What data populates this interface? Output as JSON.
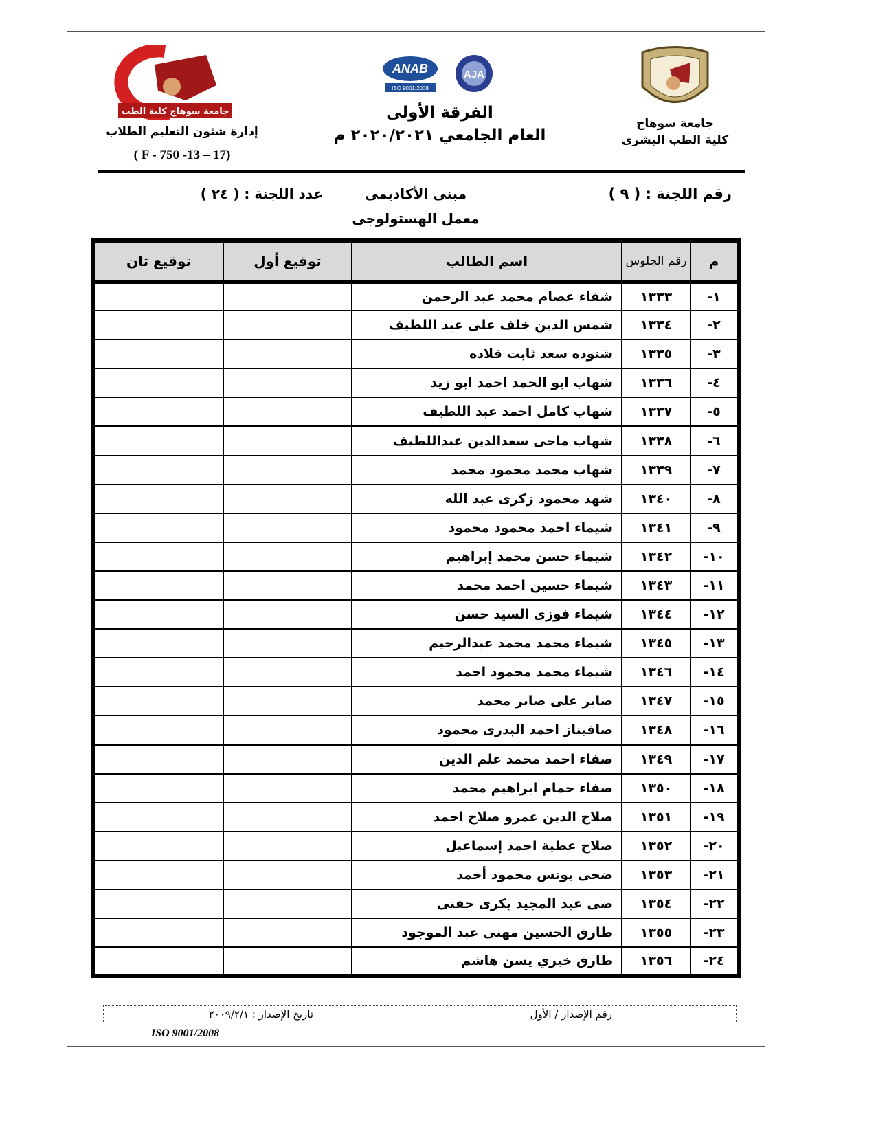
{
  "header": {
    "university": "جامعة سوهاج",
    "faculty": "كلية الطب البشرى",
    "year_level": "الفرقة الأولى",
    "academic_year": "العام الجامعي ٢٠٢٠/٢٠٢١ م",
    "department": "إدارة شئون التعليم الطلاب",
    "form_code": "( F - 750 -13 – 17)",
    "logo_left_text": "جامعة سوهاج كلية الطب",
    "anab_text": "ANAB",
    "anab_sub": "ISO 9001:2008",
    "aja_text": "AJA"
  },
  "committee": {
    "number_label": "رقم اللجنة : ( ٩ )",
    "building": "مبنى الأكاديمى",
    "lab": "معمل الهستولوجى",
    "count_label": "عدد اللجنة : ( ٢٤ )"
  },
  "table": {
    "headers": {
      "index": "م",
      "seat": "رقم الجلوس",
      "name": "اسم الطالب",
      "sig1": "توقيع أول",
      "sig2": "توقيع ثان"
    },
    "rows": [
      {
        "idx": "١-",
        "seat": "١٣٣٣",
        "name": "شفاء عصام محمد عبد الرحمن"
      },
      {
        "idx": "٢-",
        "seat": "١٣٣٤",
        "name": "شمس الدين خلف على عبد اللطيف"
      },
      {
        "idx": "٣-",
        "seat": "١٣٣٥",
        "name": "شنوده سعد ثابت قلاده"
      },
      {
        "idx": "٤-",
        "seat": "١٣٣٦",
        "name": "شهاب ابو الحمد احمد ابو زيد"
      },
      {
        "idx": "٥-",
        "seat": "١٣٣٧",
        "name": "شهاب كامل احمد عبد اللطيف"
      },
      {
        "idx": "٦-",
        "seat": "١٣٣٨",
        "name": "شهاب ماحى سعدالدين عبداللطيف"
      },
      {
        "idx": "٧-",
        "seat": "١٣٣٩",
        "name": "شهاب محمد محمود محمد"
      },
      {
        "idx": "٨-",
        "seat": "١٣٤٠",
        "name": "شهد محمود زكرى عبد الله"
      },
      {
        "idx": "٩-",
        "seat": "١٣٤١",
        "name": "شيماء احمد محمود محمود"
      },
      {
        "idx": "١٠-",
        "seat": "١٣٤٢",
        "name": "شيماء حسن محمد إبراهيم"
      },
      {
        "idx": "١١-",
        "seat": "١٣٤٣",
        "name": "شيماء حسين احمد محمد"
      },
      {
        "idx": "١٢-",
        "seat": "١٣٤٤",
        "name": "شيماء فوزى السيد حسن"
      },
      {
        "idx": "١٣-",
        "seat": "١٣٤٥",
        "name": "شيماء محمد محمد عبدالرحيم"
      },
      {
        "idx": "١٤-",
        "seat": "١٣٤٦",
        "name": "شيماء محمد محمود احمد"
      },
      {
        "idx": "١٥-",
        "seat": "١٣٤٧",
        "name": "صابر على صابر محمد"
      },
      {
        "idx": "١٦-",
        "seat": "١٣٤٨",
        "name": "صافيناز احمد البدرى محمود"
      },
      {
        "idx": "١٧-",
        "seat": "١٣٤٩",
        "name": "صفاء احمد محمد علم الدين"
      },
      {
        "idx": "١٨-",
        "seat": "١٣٥٠",
        "name": "صفاء حمام ابراهيم محمد"
      },
      {
        "idx": "١٩-",
        "seat": "١٣٥١",
        "name": "صلاح الدين عمرو صلاح احمد"
      },
      {
        "idx": "٢٠-",
        "seat": "١٣٥٢",
        "name": "صلاح عطية احمد إسماعيل"
      },
      {
        "idx": "٢١-",
        "seat": "١٣٥٣",
        "name": "ضحى يونس محمود أحمد"
      },
      {
        "idx": "٢٢-",
        "seat": "١٣٥٤",
        "name": "ضى عبد المجيد بكرى حفنى"
      },
      {
        "idx": "٢٣-",
        "seat": "١٣٥٥",
        "name": "طارق الحسين مهنى عبد الموجود"
      },
      {
        "idx": "٢٤-",
        "seat": "١٣٥٦",
        "name": "طارق خيري يسن هاشم"
      }
    ]
  },
  "footer": {
    "issue_number": "رقم الإصدار / الأول",
    "issue_date": "تاريخ الإصدار : ٢٠٠٩/٢/١",
    "iso": "ISO 9001/2008"
  }
}
